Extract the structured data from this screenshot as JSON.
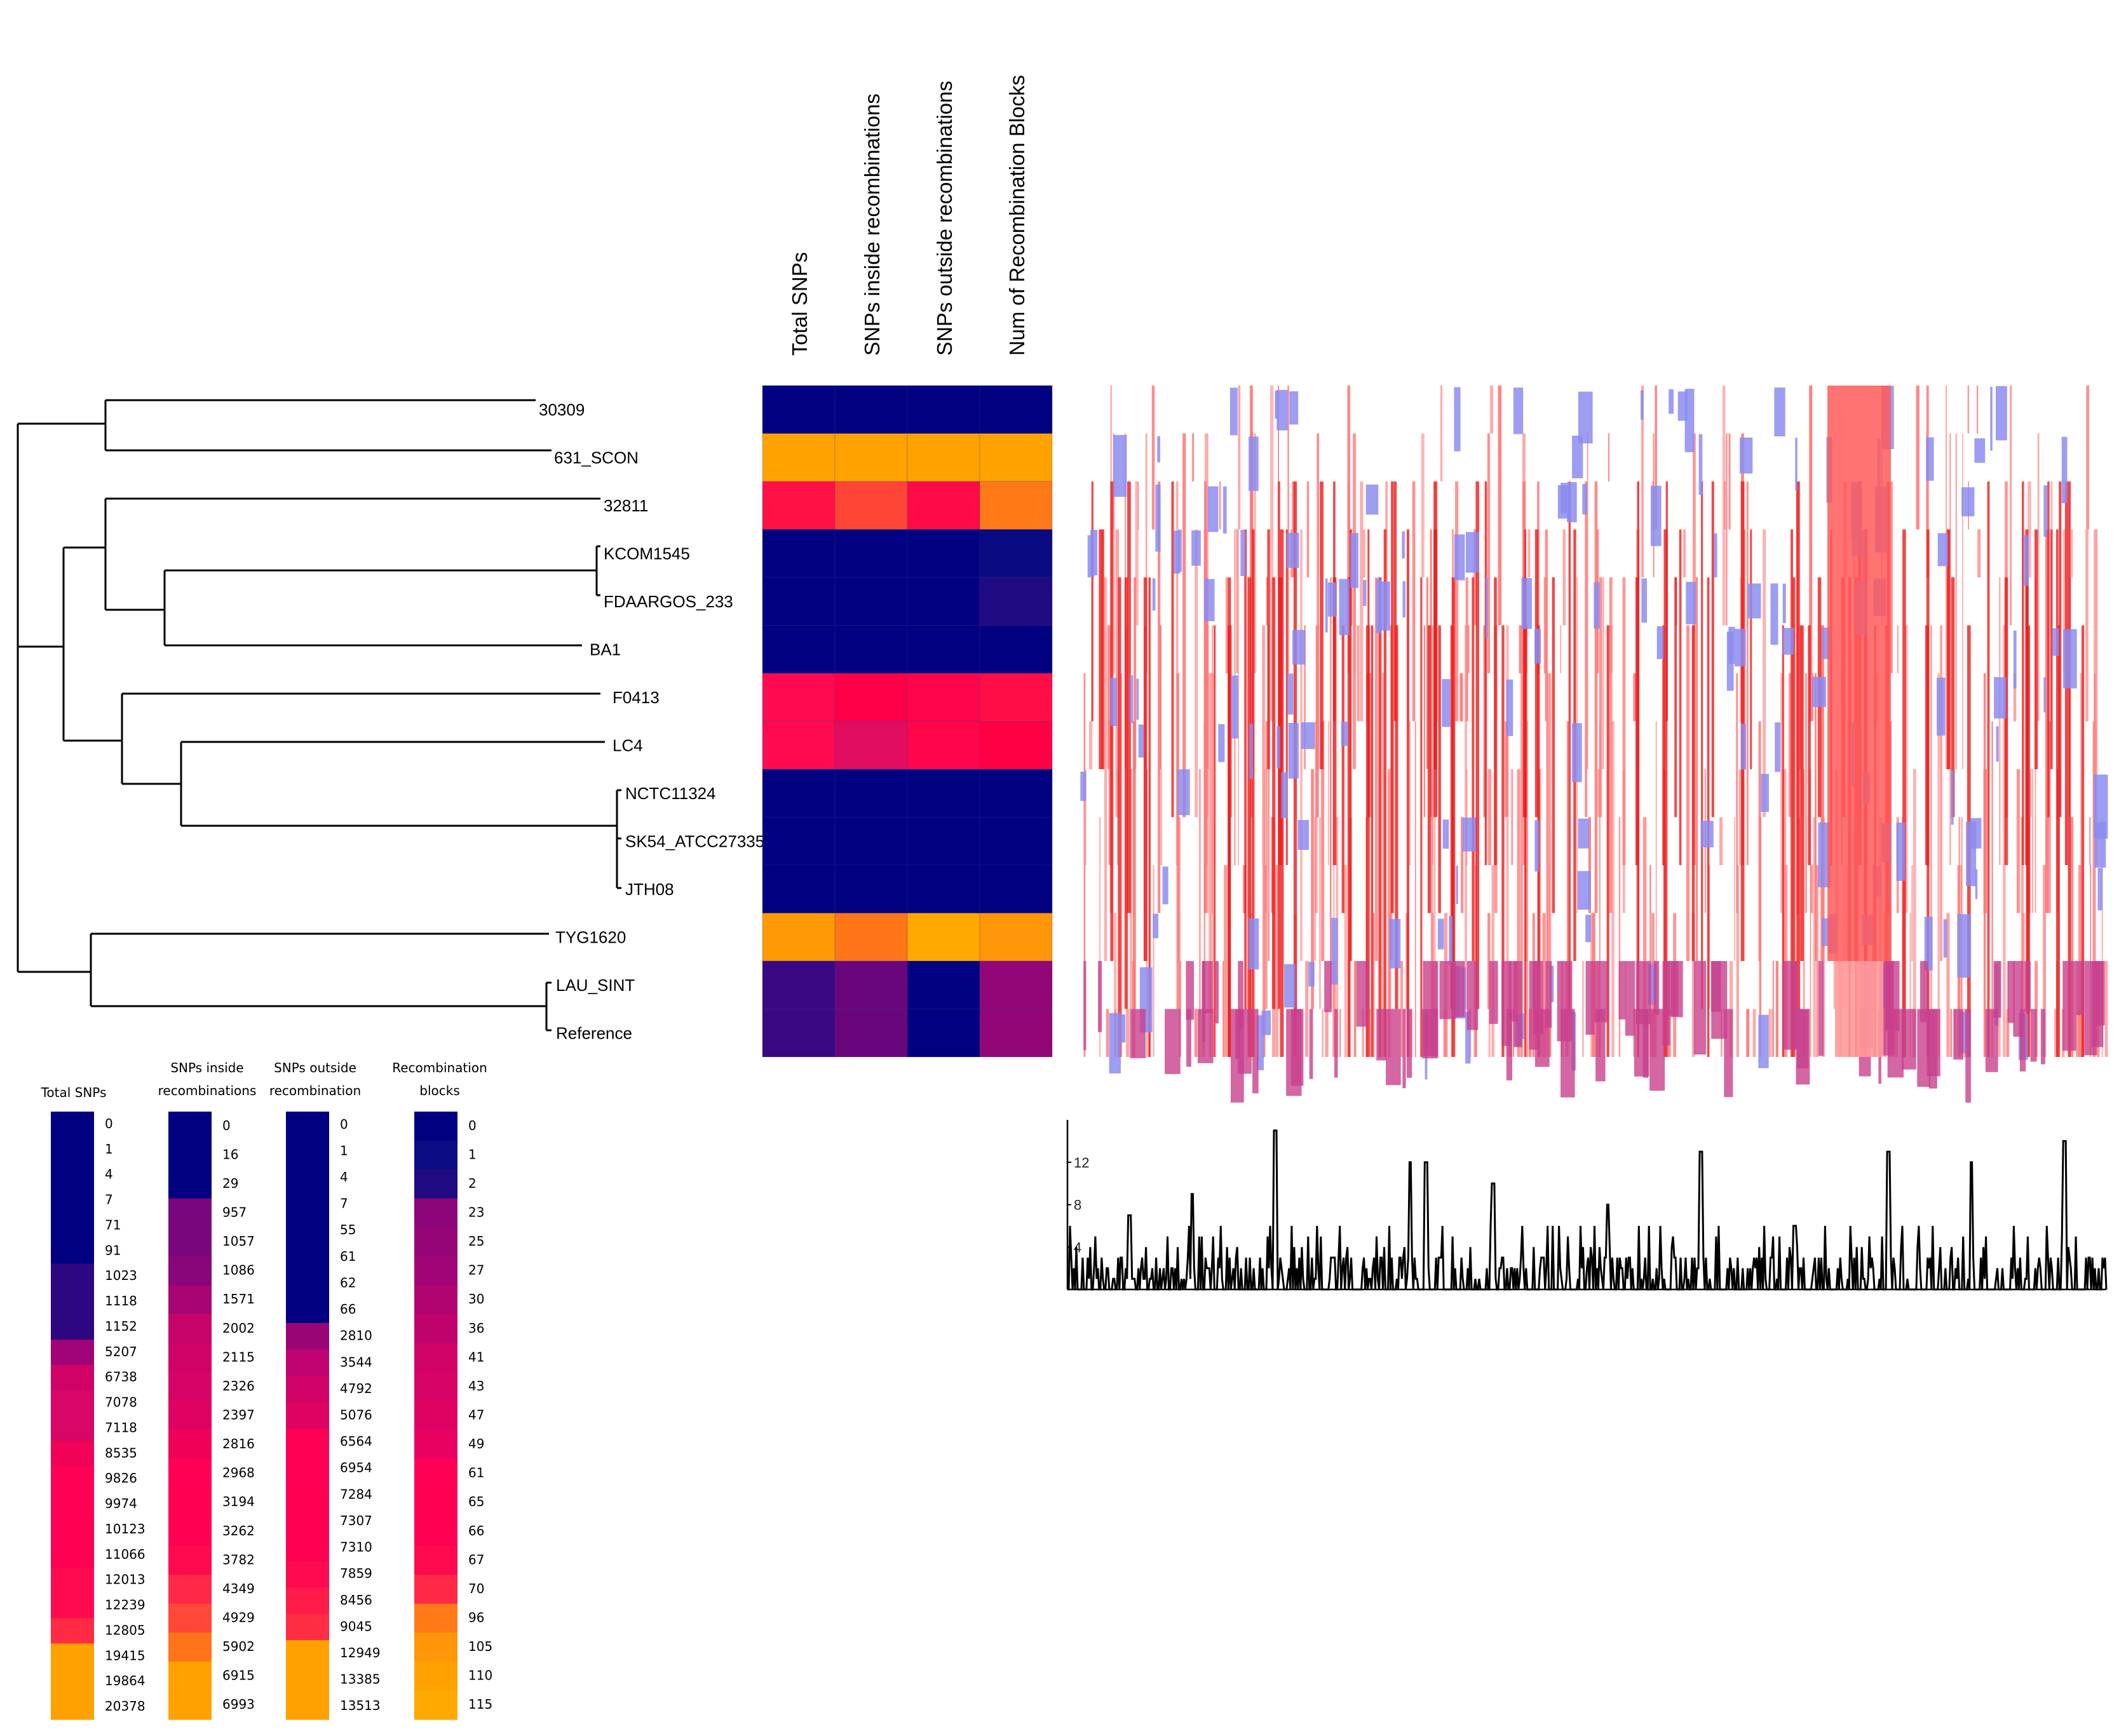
{
  "columns": [
    "Total SNPs",
    "SNPs inside recombinations",
    "SNPs outside recombinations",
    "Num of Recombination Blocks"
  ],
  "taxa": [
    {
      "name": "30309",
      "colors": [
        "#010080",
        "#010080",
        "#010080",
        "#010080"
      ]
    },
    {
      "name": "631_SCON",
      "colors": [
        "#ffa200",
        "#ffa200",
        "#ffa200",
        "#ffa200"
      ]
    },
    {
      "name": "32811",
      "colors": [
        "#ff1146",
        "#ff4636",
        "#ff0a48",
        "#ff7a16"
      ]
    },
    {
      "name": "KCOM1545",
      "colors": [
        "#010080",
        "#010080",
        "#010080",
        "#0a0a82"
      ]
    },
    {
      "name": "FDAARGOS_233",
      "colors": [
        "#010080",
        "#010080",
        "#010080",
        "#200a82"
      ]
    },
    {
      "name": "BA1",
      "colors": [
        "#010080",
        "#010080",
        "#010080",
        "#010080"
      ]
    },
    {
      "name": "F0413",
      "colors": [
        "#ff0a50",
        "#ff0048",
        "#ff064a",
        "#ff0d46"
      ]
    },
    {
      "name": "LC4",
      "colors": [
        "#ff0a50",
        "#e00c60",
        "#ff064a",
        "#ff0044"
      ]
    },
    {
      "name": "NCTC11324",
      "colors": [
        "#010080",
        "#010080",
        "#010080",
        "#010080"
      ]
    },
    {
      "name": "SK54_ATCC27335",
      "colors": [
        "#010080",
        "#010080",
        "#010080",
        "#010080"
      ]
    },
    {
      "name": "JTH08",
      "colors": [
        "#010080",
        "#010080",
        "#010080",
        "#010080"
      ]
    },
    {
      "name": "TYG1620",
      "colors": [
        "#ff9a06",
        "#ff7518",
        "#ffa800",
        "#ff9508"
      ]
    },
    {
      "name": "LAU_SINT",
      "colors": [
        "#3a0882",
        "#6a067c",
        "#010080",
        "#920677"
      ]
    },
    {
      "name": "Reference",
      "colors": [
        "#3a0882",
        "#6a067c",
        "#010080",
        "#920677"
      ]
    }
  ],
  "legends": [
    {
      "title": [
        "Total SNPs"
      ],
      "values": [
        "0",
        "1",
        "4",
        "7",
        "71",
        "91",
        "1023",
        "1118",
        "1152",
        "5207",
        "6738",
        "7078",
        "7118",
        "8535",
        "9826",
        "9974",
        "10123",
        "11066",
        "12013",
        "12239",
        "12805",
        "19415",
        "19864",
        "20378"
      ],
      "colors": [
        "#010080",
        "#010080",
        "#010080",
        "#010080",
        "#010080",
        "#010080",
        "#2c0781",
        "#2c0781",
        "#2c0781",
        "#a00476",
        "#d00268",
        "#d80666",
        "#d80666",
        "#f00258",
        "#ff0055",
        "#ff0055",
        "#ff0052",
        "#ff0052",
        "#ff0a50",
        "#ff0a50",
        "#ff2a44",
        "#ffa100",
        "#ffa100",
        "#ffa100"
      ]
    },
    {
      "title": [
        "SNPs inside",
        "recombinations"
      ],
      "values": [
        "0",
        "16",
        "29",
        "957",
        "1057",
        "1086",
        "1571",
        "2002",
        "2115",
        "2326",
        "2397",
        "2816",
        "2968",
        "3194",
        "3262",
        "3782",
        "4349",
        "4929",
        "5902",
        "6915",
        "6993"
      ],
      "colors": [
        "#010080",
        "#010080",
        "#010080",
        "#78067c",
        "#78067c",
        "#880679",
        "#a80472",
        "#c8036a",
        "#d00268",
        "#d80366",
        "#e00262",
        "#f00158",
        "#ff0055",
        "#ff0052",
        "#ff0052",
        "#ff0a4e",
        "#ff2846",
        "#ff4838",
        "#ff7418",
        "#ffa100",
        "#ffa100"
      ]
    },
    {
      "title": [
        "SNPs outside",
        "recombination"
      ],
      "values": [
        "0",
        "1",
        "4",
        "7",
        "55",
        "61",
        "62",
        "66",
        "2810",
        "3544",
        "4792",
        "5076",
        "6564",
        "6954",
        "7284",
        "7307",
        "7310",
        "7859",
        "8456",
        "9045",
        "12949",
        "13385",
        "13513"
      ],
      "colors": [
        "#010080",
        "#010080",
        "#010080",
        "#010080",
        "#010080",
        "#010080",
        "#010080",
        "#010080",
        "#9a0575",
        "#c00370",
        "#d00268",
        "#e00262",
        "#ff0055",
        "#ff0055",
        "#ff0052",
        "#ff0052",
        "#ff0052",
        "#ff0a50",
        "#ff1c48",
        "#ff2c44",
        "#ffa100",
        "#ffa100",
        "#ffa100"
      ]
    },
    {
      "title": [
        "Recombination",
        "blocks"
      ],
      "values": [
        "0",
        "1",
        "2",
        "23",
        "25",
        "27",
        "30",
        "36",
        "41",
        "43",
        "47",
        "49",
        "61",
        "65",
        "66",
        "67",
        "70",
        "96",
        "105",
        "110",
        "115"
      ],
      "colors": [
        "#010080",
        "#0c0c84",
        "#200a82",
        "#8c067a",
        "#960578",
        "#a00476",
        "#b00470",
        "#c0036c",
        "#d00268",
        "#d80366",
        "#e00262",
        "#e80160",
        "#ff0055",
        "#ff0052",
        "#ff0052",
        "#ff0a4e",
        "#ff2846",
        "#ff7a16",
        "#ff9508",
        "#ffa100",
        "#ffa800"
      ]
    }
  ],
  "recombination_plot": {
    "y_tick_labels": [
      "12",
      "8",
      "4"
    ],
    "y_tick_values": [
      12,
      8,
      4
    ],
    "y_range": [
      0,
      16
    ],
    "x_range": [
      0,
      1
    ]
  }
}
